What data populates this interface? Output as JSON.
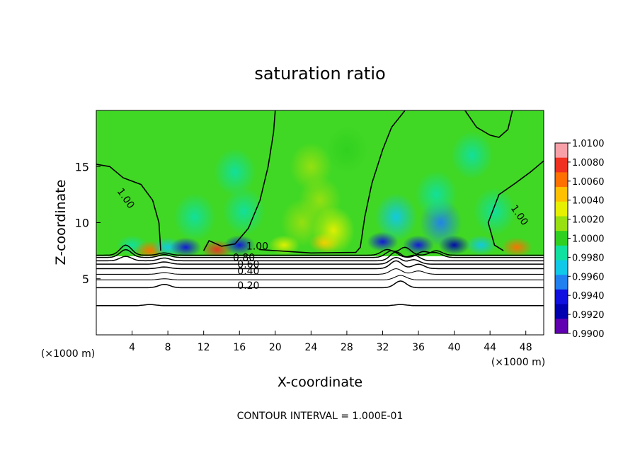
{
  "chart_data": {
    "type": "heatmap",
    "title": "saturation ratio",
    "xlabel": "X-coordinate",
    "ylabel": "Z-coordinate",
    "x_unit": "(×1000 m)",
    "x_unit_right": "(×1000 m)",
    "xlim": [
      0,
      50
    ],
    "ylim": [
      0,
      20
    ],
    "x_ticks": [
      4,
      8,
      12,
      16,
      20,
      24,
      28,
      32,
      36,
      40,
      44,
      48
    ],
    "y_ticks": [
      5,
      10,
      15
    ],
    "footer": "CONTOUR INTERVAL = 1.000E-01",
    "colorbar": {
      "min": 0.99,
      "max": 1.01,
      "labels": [
        "1.0100",
        "1.0080",
        "1.0060",
        "1.0040",
        "1.0020",
        "1.0000",
        "0.9980",
        "0.9960",
        "0.9940",
        "0.9920",
        "0.9900"
      ],
      "colors": [
        "#f7a0a8",
        "#f03020",
        "#ff7000",
        "#ffc000",
        "#e6f000",
        "#98e010",
        "#30d020",
        "#10e0a0",
        "#10c8e8",
        "#2080f0",
        "#1010e0",
        "#0000b0",
        "#6000b0"
      ]
    },
    "contour_labels": [
      {
        "text": "1.00",
        "x": 3.0,
        "y": 12.0,
        "angle": 55
      },
      {
        "text": "1.00",
        "x": 18.0,
        "y": 7.6,
        "angle": 0
      },
      {
        "text": "1.00",
        "x": 47.0,
        "y": 10.5,
        "angle": 55
      },
      {
        "text": "0.80",
        "x": 16.5,
        "y": 6.6,
        "angle": 0
      },
      {
        "text": "0.60",
        "x": 17.0,
        "y": 6.0,
        "angle": 0
      },
      {
        "text": "0.40",
        "x": 17.0,
        "y": 5.4,
        "angle": 0
      },
      {
        "text": "0.20",
        "x": 17.0,
        "y": 4.1,
        "angle": 0
      }
    ],
    "anomalies": [
      {
        "x": 4.0,
        "y": 8.0,
        "v": 0.998
      },
      {
        "x": 6.0,
        "y": 7.5,
        "v": 1.006
      },
      {
        "x": 8.0,
        "y": 7.8,
        "v": 0.996
      },
      {
        "x": 10.0,
        "y": 7.8,
        "v": 0.993
      },
      {
        "x": 11.0,
        "y": 10.5,
        "v": 0.9985
      },
      {
        "x": 13.5,
        "y": 7.6,
        "v": 1.008
      },
      {
        "x": 16.0,
        "y": 8.0,
        "v": 0.993
      },
      {
        "x": 16.5,
        "y": 11.0,
        "v": 0.9975
      },
      {
        "x": 15.5,
        "y": 14.5,
        "v": 0.9985
      },
      {
        "x": 21.0,
        "y": 8.0,
        "v": 1.004
      },
      {
        "x": 23.0,
        "y": 10.0,
        "v": 1.0025
      },
      {
        "x": 25.0,
        "y": 12.0,
        "v": 1.002
      },
      {
        "x": 25.5,
        "y": 8.2,
        "v": 1.0045
      },
      {
        "x": 26.5,
        "y": 9.3,
        "v": 1.0035
      },
      {
        "x": 24.0,
        "y": 15.0,
        "v": 1.001
      },
      {
        "x": 28.0,
        "y": 16.5,
        "v": 1.0008
      },
      {
        "x": 32.0,
        "y": 8.3,
        "v": 0.9925
      },
      {
        "x": 33.5,
        "y": 10.5,
        "v": 0.996
      },
      {
        "x": 36.0,
        "y": 8.0,
        "v": 0.994
      },
      {
        "x": 38.5,
        "y": 10.0,
        "v": 0.995
      },
      {
        "x": 40.0,
        "y": 8.0,
        "v": 0.992
      },
      {
        "x": 38.0,
        "y": 12.5,
        "v": 0.998
      },
      {
        "x": 43.0,
        "y": 8.0,
        "v": 0.996
      },
      {
        "x": 44.5,
        "y": 11.0,
        "v": 0.9985
      },
      {
        "x": 47.0,
        "y": 7.8,
        "v": 1.007
      },
      {
        "x": 42.0,
        "y": 16.0,
        "v": 0.999
      }
    ],
    "contours_1_00": [
      [
        [
          0,
          15.2
        ],
        [
          1.5,
          15.0
        ],
        [
          3,
          14.0
        ],
        [
          5,
          13.4
        ],
        [
          6.3,
          12.0
        ],
        [
          7.0,
          10.0
        ],
        [
          7.2,
          7.5
        ]
      ],
      [
        [
          20.0,
          20
        ],
        [
          19.8,
          18
        ],
        [
          19.2,
          15
        ],
        [
          18.3,
          12.0
        ],
        [
          17.0,
          9.5
        ],
        [
          15.5,
          8.1
        ],
        [
          14,
          7.9
        ],
        [
          12.6,
          8.4
        ],
        [
          12.0,
          7.5
        ]
      ],
      [
        [
          18.2,
          7.6
        ],
        [
          22,
          7.4
        ],
        [
          24,
          7.3
        ],
        [
          29,
          7.35
        ],
        [
          29.5,
          7.8
        ],
        [
          30.0,
          10.5
        ],
        [
          30.8,
          13.5
        ],
        [
          32.0,
          16.5
        ],
        [
          33.0,
          18.5
        ],
        [
          34.5,
          20
        ]
      ],
      [
        [
          41.2,
          20
        ],
        [
          42.5,
          18.5
        ],
        [
          44,
          17.8
        ],
        [
          45,
          17.6
        ],
        [
          46,
          18.3
        ],
        [
          46.5,
          20
        ]
      ],
      [
        [
          50,
          15.5
        ],
        [
          48.5,
          14.5
        ],
        [
          46.8,
          13.5
        ],
        [
          45,
          12.5
        ],
        [
          43.8,
          10.0
        ],
        [
          44.5,
          8.0
        ],
        [
          45.5,
          7.5
        ]
      ]
    ],
    "contours_low": [
      {
        "z": 7.1,
        "bump": [
          [
            3.3,
            0.9
          ],
          [
            7.6,
            0.2
          ],
          [
            32.5,
            0.5
          ],
          [
            34.5,
            0.7
          ],
          [
            38.0,
            0.4
          ]
        ]
      },
      {
        "z": 6.9,
        "bump": [
          [
            3.3,
            0.7
          ],
          [
            7.6,
            0.25
          ],
          [
            33.0,
            0.6
          ],
          [
            36.5,
            0.5
          ],
          [
            38.0,
            0.4
          ]
        ]
      },
      {
        "z": 6.6,
        "bump": [
          [
            3.3,
            0.4
          ],
          [
            7.6,
            0.25
          ],
          [
            33.5,
            0.8
          ],
          [
            35.5,
            0.5
          ]
        ]
      },
      {
        "z": 6.3,
        "bump": [
          [
            7.6,
            0.2
          ],
          [
            33.5,
            0.6
          ],
          [
            35.5,
            0.4
          ]
        ]
      },
      {
        "z": 5.9,
        "bump": [
          [
            7.6,
            0.15
          ],
          [
            33.5,
            0.7
          ],
          [
            36.0,
            0.4
          ]
        ]
      },
      {
        "z": 5.4,
        "bump": [
          [
            7.6,
            0.15
          ],
          [
            33.5,
            0.5
          ],
          [
            36.0,
            0.3
          ]
        ]
      },
      {
        "z": 4.9,
        "bump": [
          [
            7.6,
            0.1
          ],
          [
            34.0,
            0.4
          ]
        ]
      },
      {
        "z": 4.2,
        "bump": [
          [
            7.6,
            0.3
          ],
          [
            34.0,
            0.6
          ]
        ]
      },
      {
        "z": 2.6,
        "bump": [
          [
            6.0,
            0.1
          ],
          [
            34.0,
            0.1
          ]
        ]
      }
    ]
  }
}
